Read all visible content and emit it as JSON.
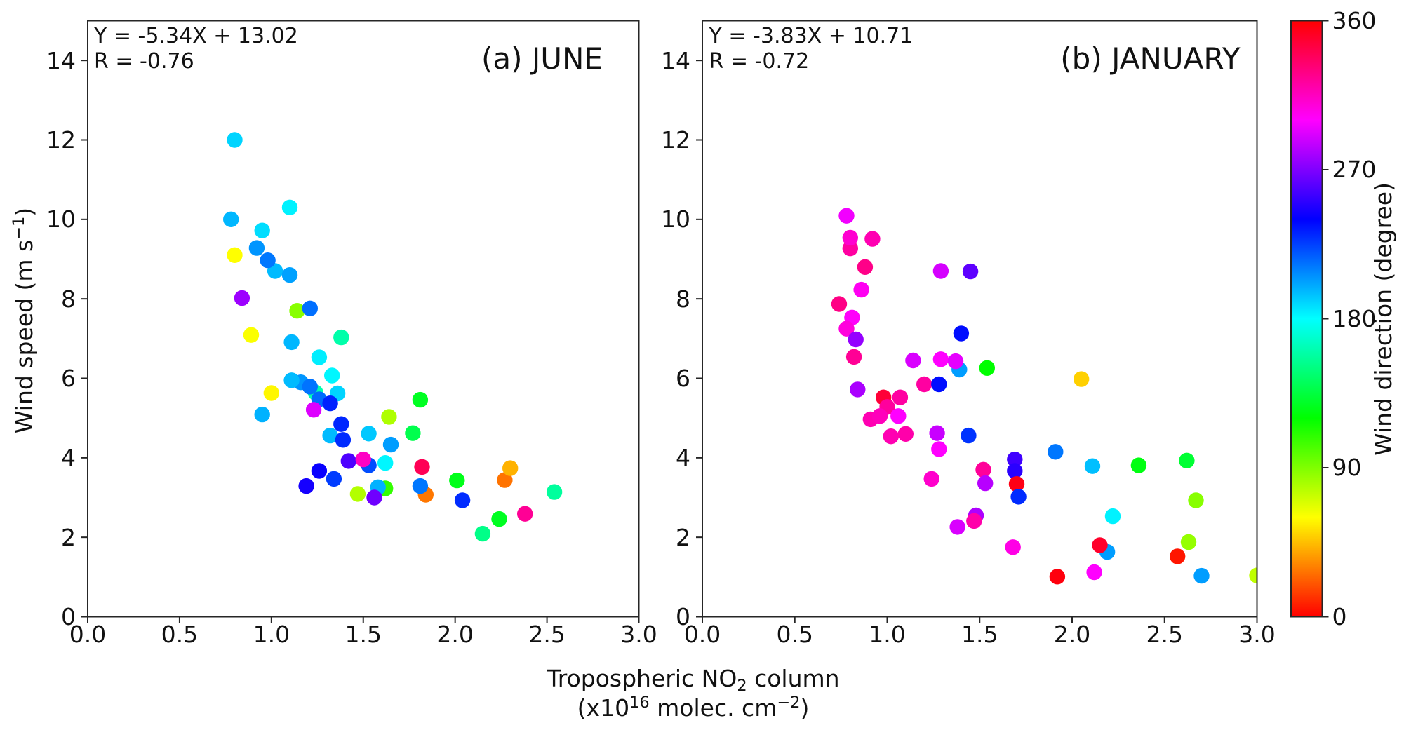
{
  "figure": {
    "background": "#ffffff",
    "text_color": "#111111",
    "spine_color": "#262626",
    "xlabel_line1_parts": [
      {
        "t": "Tropospheric NO"
      },
      {
        "sub": "2"
      },
      {
        "t": " column"
      }
    ],
    "xlabel_line2_parts": [
      {
        "t": "(x10"
      },
      {
        "sup": "16"
      },
      {
        "t": " molec. cm"
      },
      {
        "sup": "−2"
      },
      {
        "t": ")"
      }
    ],
    "ylabel_parts": [
      {
        "t": "Wind speed (m s"
      },
      {
        "sup": "−1"
      },
      {
        "t": ")"
      }
    ]
  },
  "chart_data": [
    {
      "type": "scatter",
      "panel": "a",
      "title": "(a) JUNE",
      "annotation_line1": "Y = -5.34X + 13.02",
      "annotation_line2": "R = -0.76",
      "xlabel": "Tropospheric NO2 column (x10^16 molec. cm^-2)",
      "ylabel": "Wind speed (m s^-1)",
      "xlim": [
        0,
        3
      ],
      "ylim": [
        0,
        15
      ],
      "grid": false,
      "xticks": [
        {
          "v": 0.0,
          "label": "0.0"
        },
        {
          "v": 0.5,
          "label": "0.5"
        },
        {
          "v": 1.0,
          "label": "1.0"
        },
        {
          "v": 1.5,
          "label": "1.5"
        },
        {
          "v": 2.0,
          "label": "2.0"
        },
        {
          "v": 2.5,
          "label": "2.5"
        },
        {
          "v": 3.0,
          "label": "3.0"
        }
      ],
      "yticks": [
        {
          "v": 0,
          "label": "0"
        },
        {
          "v": 2,
          "label": "2"
        },
        {
          "v": 4,
          "label": "4"
        },
        {
          "v": 6,
          "label": "6"
        },
        {
          "v": 8,
          "label": "8"
        },
        {
          "v": 10,
          "label": "10"
        },
        {
          "v": 12,
          "label": "12"
        },
        {
          "v": 14,
          "label": "14"
        }
      ],
      "color_encoding": "wind direction (degree), hsv colormap 0-360",
      "points": [
        {
          "x": 0.8,
          "y": 12.0,
          "d": 190
        },
        {
          "x": 1.1,
          "y": 10.3,
          "d": 183
        },
        {
          "x": 0.78,
          "y": 10.0,
          "d": 197
        },
        {
          "x": 0.95,
          "y": 9.72,
          "d": 188
        },
        {
          "x": 0.92,
          "y": 9.28,
          "d": 205
        },
        {
          "x": 0.8,
          "y": 9.1,
          "d": 60
        },
        {
          "x": 1.02,
          "y": 8.7,
          "d": 196
        },
        {
          "x": 0.98,
          "y": 8.97,
          "d": 212
        },
        {
          "x": 1.1,
          "y": 8.6,
          "d": 202
        },
        {
          "x": 0.84,
          "y": 8.02,
          "d": 277
        },
        {
          "x": 1.14,
          "y": 7.7,
          "d": 88
        },
        {
          "x": 1.21,
          "y": 7.76,
          "d": 214
        },
        {
          "x": 0.89,
          "y": 7.09,
          "d": 61
        },
        {
          "x": 1.11,
          "y": 6.91,
          "d": 197
        },
        {
          "x": 1.38,
          "y": 7.03,
          "d": 160
        },
        {
          "x": 1.26,
          "y": 6.53,
          "d": 184
        },
        {
          "x": 1.33,
          "y": 6.07,
          "d": 182
        },
        {
          "x": 1.24,
          "y": 5.64,
          "d": 162
        },
        {
          "x": 1.16,
          "y": 5.9,
          "d": 205
        },
        {
          "x": 1.21,
          "y": 5.79,
          "d": 213
        },
        {
          "x": 1.11,
          "y": 5.95,
          "d": 196
        },
        {
          "x": 1.0,
          "y": 5.63,
          "d": 58
        },
        {
          "x": 1.36,
          "y": 5.62,
          "d": 190
        },
        {
          "x": 1.26,
          "y": 5.47,
          "d": 215
        },
        {
          "x": 1.32,
          "y": 5.37,
          "d": 232
        },
        {
          "x": 1.23,
          "y": 5.21,
          "d": 292
        },
        {
          "x": 0.95,
          "y": 5.09,
          "d": 198
        },
        {
          "x": 1.38,
          "y": 4.85,
          "d": 231
        },
        {
          "x": 1.32,
          "y": 4.56,
          "d": 196
        },
        {
          "x": 1.39,
          "y": 4.45,
          "d": 230
        },
        {
          "x": 1.53,
          "y": 4.61,
          "d": 193
        },
        {
          "x": 1.65,
          "y": 4.33,
          "d": 203
        },
        {
          "x": 1.64,
          "y": 5.03,
          "d": 79
        },
        {
          "x": 1.81,
          "y": 5.46,
          "d": 128
        },
        {
          "x": 1.77,
          "y": 4.62,
          "d": 138
        },
        {
          "x": 1.42,
          "y": 3.92,
          "d": 258
        },
        {
          "x": 1.53,
          "y": 3.81,
          "d": 222
        },
        {
          "x": 1.5,
          "y": 3.96,
          "d": 314
        },
        {
          "x": 1.62,
          "y": 3.87,
          "d": 182
        },
        {
          "x": 1.26,
          "y": 3.67,
          "d": 242
        },
        {
          "x": 1.34,
          "y": 3.47,
          "d": 226
        },
        {
          "x": 1.19,
          "y": 3.29,
          "d": 245
        },
        {
          "x": 1.82,
          "y": 3.77,
          "d": 340
        },
        {
          "x": 1.47,
          "y": 3.09,
          "d": 78
        },
        {
          "x": 1.62,
          "y": 3.23,
          "d": 108
        },
        {
          "x": 1.58,
          "y": 3.26,
          "d": 198
        },
        {
          "x": 1.56,
          "y": 3.0,
          "d": 266
        },
        {
          "x": 1.84,
          "y": 3.07,
          "d": 28
        },
        {
          "x": 1.81,
          "y": 3.29,
          "d": 212
        },
        {
          "x": 2.01,
          "y": 3.43,
          "d": 126
        },
        {
          "x": 2.04,
          "y": 2.93,
          "d": 230
        },
        {
          "x": 2.27,
          "y": 3.44,
          "d": 27
        },
        {
          "x": 2.3,
          "y": 3.74,
          "d": 42
        },
        {
          "x": 2.54,
          "y": 3.14,
          "d": 157
        },
        {
          "x": 2.38,
          "y": 2.59,
          "d": 325
        },
        {
          "x": 2.24,
          "y": 2.46,
          "d": 128
        },
        {
          "x": 2.15,
          "y": 2.09,
          "d": 152
        }
      ]
    },
    {
      "type": "scatter",
      "panel": "b",
      "title": "(b) JANUARY",
      "annotation_line1": "Y = -3.83X + 10.71",
      "annotation_line2": "R = -0.72",
      "xlabel": "Tropospheric NO2 column (x10^16 molec. cm^-2)",
      "ylabel": "Wind speed (m s^-1)",
      "xlim": [
        0,
        3
      ],
      "ylim": [
        0,
        15
      ],
      "grid": false,
      "xticks": [
        {
          "v": 0.0,
          "label": "0.0"
        },
        {
          "v": 0.5,
          "label": "0.5"
        },
        {
          "v": 1.0,
          "label": "1.0"
        },
        {
          "v": 1.5,
          "label": "1.5"
        },
        {
          "v": 2.0,
          "label": "2.0"
        },
        {
          "v": 2.5,
          "label": "2.5"
        },
        {
          "v": 3.0,
          "label": "3.0"
        }
      ],
      "yticks": [
        {
          "v": 0,
          "label": "0"
        },
        {
          "v": 2,
          "label": "2"
        },
        {
          "v": 4,
          "label": "4"
        },
        {
          "v": 6,
          "label": "6"
        },
        {
          "v": 8,
          "label": "8"
        },
        {
          "v": 10,
          "label": "10"
        },
        {
          "v": 12,
          "label": "12"
        },
        {
          "v": 14,
          "label": "14"
        }
      ],
      "color_encoding": "wind direction (degree), hsv colormap 0-360",
      "points": [
        {
          "x": 0.78,
          "y": 10.09,
          "d": 297
        },
        {
          "x": 0.8,
          "y": 9.27,
          "d": 322
        },
        {
          "x": 0.8,
          "y": 9.54,
          "d": 311
        },
        {
          "x": 0.92,
          "y": 9.51,
          "d": 318
        },
        {
          "x": 0.88,
          "y": 8.8,
          "d": 328
        },
        {
          "x": 0.86,
          "y": 8.23,
          "d": 303
        },
        {
          "x": 0.74,
          "y": 7.87,
          "d": 329
        },
        {
          "x": 0.81,
          "y": 7.53,
          "d": 301
        },
        {
          "x": 0.78,
          "y": 7.25,
          "d": 308
        },
        {
          "x": 0.83,
          "y": 6.98,
          "d": 275
        },
        {
          "x": 0.82,
          "y": 6.54,
          "d": 325
        },
        {
          "x": 1.29,
          "y": 8.7,
          "d": 290
        },
        {
          "x": 1.45,
          "y": 8.69,
          "d": 262
        },
        {
          "x": 1.4,
          "y": 7.13,
          "d": 237
        },
        {
          "x": 1.14,
          "y": 6.45,
          "d": 291
        },
        {
          "x": 1.29,
          "y": 6.48,
          "d": 300
        },
        {
          "x": 1.39,
          "y": 6.22,
          "d": 203
        },
        {
          "x": 1.37,
          "y": 6.43,
          "d": 294
        },
        {
          "x": 1.54,
          "y": 6.26,
          "d": 120
        },
        {
          "x": 1.2,
          "y": 5.85,
          "d": 322
        },
        {
          "x": 1.28,
          "y": 5.85,
          "d": 237
        },
        {
          "x": 2.05,
          "y": 5.98,
          "d": 49
        },
        {
          "x": 0.84,
          "y": 5.72,
          "d": 280
        },
        {
          "x": 0.98,
          "y": 5.52,
          "d": 347
        },
        {
          "x": 1.07,
          "y": 5.52,
          "d": 322
        },
        {
          "x": 1.0,
          "y": 5.28,
          "d": 323
        },
        {
          "x": 0.91,
          "y": 4.97,
          "d": 318
        },
        {
          "x": 0.96,
          "y": 5.05,
          "d": 316
        },
        {
          "x": 1.06,
          "y": 5.05,
          "d": 300
        },
        {
          "x": 1.02,
          "y": 4.54,
          "d": 318
        },
        {
          "x": 1.1,
          "y": 4.6,
          "d": 320
        },
        {
          "x": 1.27,
          "y": 4.62,
          "d": 287
        },
        {
          "x": 1.28,
          "y": 4.22,
          "d": 300
        },
        {
          "x": 1.44,
          "y": 4.56,
          "d": 228
        },
        {
          "x": 1.52,
          "y": 3.7,
          "d": 324
        },
        {
          "x": 1.53,
          "y": 3.36,
          "d": 283
        },
        {
          "x": 1.24,
          "y": 3.47,
          "d": 312
        },
        {
          "x": 1.69,
          "y": 3.96,
          "d": 255
        },
        {
          "x": 1.69,
          "y": 3.67,
          "d": 250
        },
        {
          "x": 1.7,
          "y": 3.34,
          "d": 355
        },
        {
          "x": 1.71,
          "y": 3.02,
          "d": 230
        },
        {
          "x": 1.48,
          "y": 2.55,
          "d": 281
        },
        {
          "x": 1.47,
          "y": 2.41,
          "d": 320
        },
        {
          "x": 1.38,
          "y": 2.26,
          "d": 291
        },
        {
          "x": 1.68,
          "y": 1.75,
          "d": 306
        },
        {
          "x": 1.91,
          "y": 4.15,
          "d": 212
        },
        {
          "x": 2.11,
          "y": 3.79,
          "d": 195
        },
        {
          "x": 2.36,
          "y": 3.81,
          "d": 124
        },
        {
          "x": 2.62,
          "y": 3.93,
          "d": 132
        },
        {
          "x": 2.67,
          "y": 2.93,
          "d": 88
        },
        {
          "x": 2.22,
          "y": 2.53,
          "d": 183
        },
        {
          "x": 2.19,
          "y": 1.63,
          "d": 203
        },
        {
          "x": 2.15,
          "y": 1.8,
          "d": 350
        },
        {
          "x": 2.63,
          "y": 1.88,
          "d": 85
        },
        {
          "x": 2.57,
          "y": 1.52,
          "d": 5
        },
        {
          "x": 2.12,
          "y": 1.12,
          "d": 300
        },
        {
          "x": 1.92,
          "y": 1.01,
          "d": 357
        },
        {
          "x": 2.7,
          "y": 1.03,
          "d": 203
        },
        {
          "x": 3.0,
          "y": 1.04,
          "d": 75
        }
      ]
    }
  ],
  "colorbar": {
    "label": "Wind direction (degree)",
    "min": 0,
    "max": 360,
    "colormap": "hsv",
    "ticks": [
      {
        "v": 0,
        "label": "0"
      },
      {
        "v": 90,
        "label": "90"
      },
      {
        "v": 180,
        "label": "180"
      },
      {
        "v": 270,
        "label": "270"
      },
      {
        "v": 360,
        "label": "360"
      }
    ]
  }
}
